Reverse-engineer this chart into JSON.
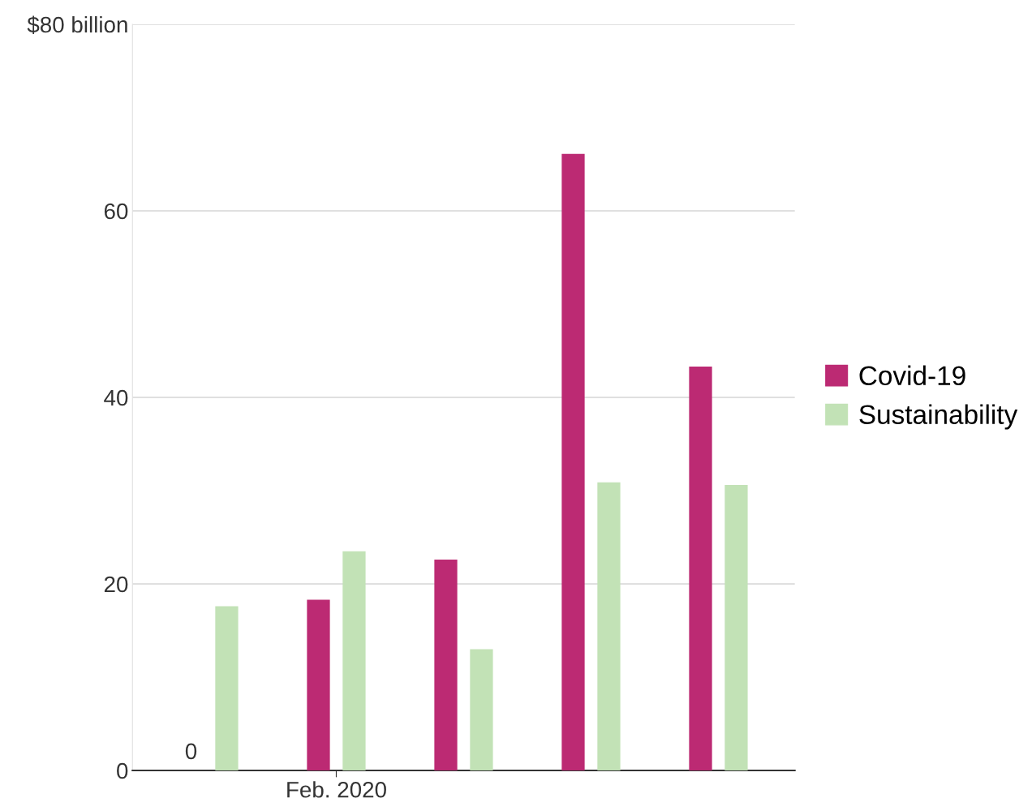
{
  "chart_data": {
    "type": "bar",
    "categories": [
      null,
      "Feb. 2020",
      null,
      null,
      null
    ],
    "series": [
      {
        "name": "Covid-19",
        "color": "#bc2a73",
        "values": [
          0,
          18.3,
          22.6,
          66.1,
          43.3
        ],
        "value_labels": [
          "0",
          null,
          null,
          null,
          null
        ]
      },
      {
        "name": "Sustainability",
        "color": "#c2e2b6",
        "values": [
          17.6,
          23.5,
          13.0,
          30.9,
          30.6
        ]
      }
    ],
    "ylim": [
      0,
      80
    ],
    "yticks": [
      0,
      20,
      40,
      60,
      {
        "value": 80,
        "label": "$80 billion"
      }
    ],
    "grid": "y",
    "legend": "right"
  }
}
